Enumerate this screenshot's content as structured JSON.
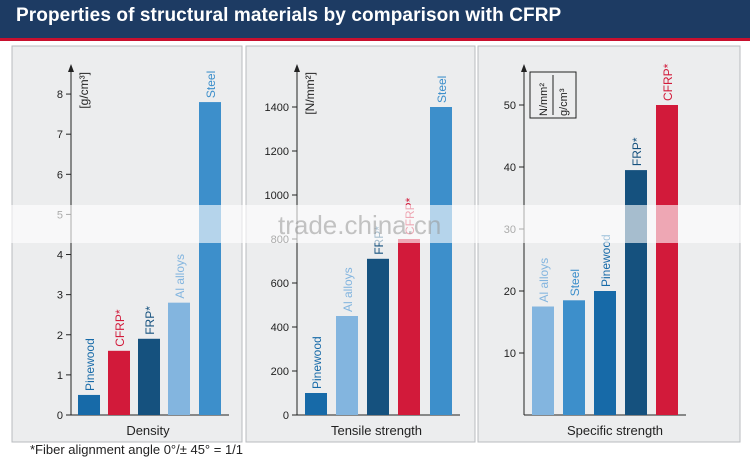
{
  "header": {
    "title": "Properties of structural materials by comparison with CFRP"
  },
  "footnote": "*Fiber alignment angle 0°/± 45° = 1/1",
  "watermark": "trade.china.cn",
  "colors": {
    "header_bg": "#1d3b63",
    "accent_red": "#c8102e",
    "Pinewood": "#176aa8",
    "CFRP*": "#d21a3a",
    "FRP*": "#15517e",
    "Al alloys": "#83b5df",
    "Steel": "#3d8fcb"
  },
  "chart_data": [
    {
      "type": "bar",
      "title": "",
      "xlabel": "Density",
      "ylabel": "[g/cm3]",
      "unit": "[g/cm³]",
      "ylim": [
        0,
        8.5
      ],
      "yticks": [
        0,
        1,
        2,
        3,
        4,
        5,
        6,
        7,
        8
      ],
      "categories": [
        "Pinewood",
        "CFRP*",
        "FRP*",
        "Al alloys",
        "Steel"
      ],
      "values": [
        0.5,
        1.6,
        1.9,
        2.8,
        7.8
      ]
    },
    {
      "type": "bar",
      "title": "",
      "xlabel": "Tensile strength",
      "ylabel": "[N/mm2]",
      "unit": "[N/mm²]",
      "ylim": [
        0,
        1550
      ],
      "yticks": [
        0,
        200,
        400,
        600,
        800,
        1000,
        1200,
        1400
      ],
      "categories": [
        "Pinewood",
        "Al alloys",
        "FRP*",
        "CFRP*",
        "Steel"
      ],
      "values": [
        100,
        450,
        710,
        800,
        1400
      ]
    },
    {
      "type": "bar",
      "title": "",
      "xlabel": "Specific strength",
      "ylabel": "[N/mm2 / g/cm3]",
      "unit_num": "N/mm²",
      "unit_den": "g/cm³",
      "ylim": [
        0,
        55
      ],
      "yticks": [
        10,
        20,
        30,
        40,
        50
      ],
      "categories": [
        "Al alloys",
        "Steel",
        "Pinewood",
        "FRP*",
        "CFRP*"
      ],
      "values": [
        17.5,
        18.5,
        20,
        39.5,
        50
      ]
    }
  ]
}
